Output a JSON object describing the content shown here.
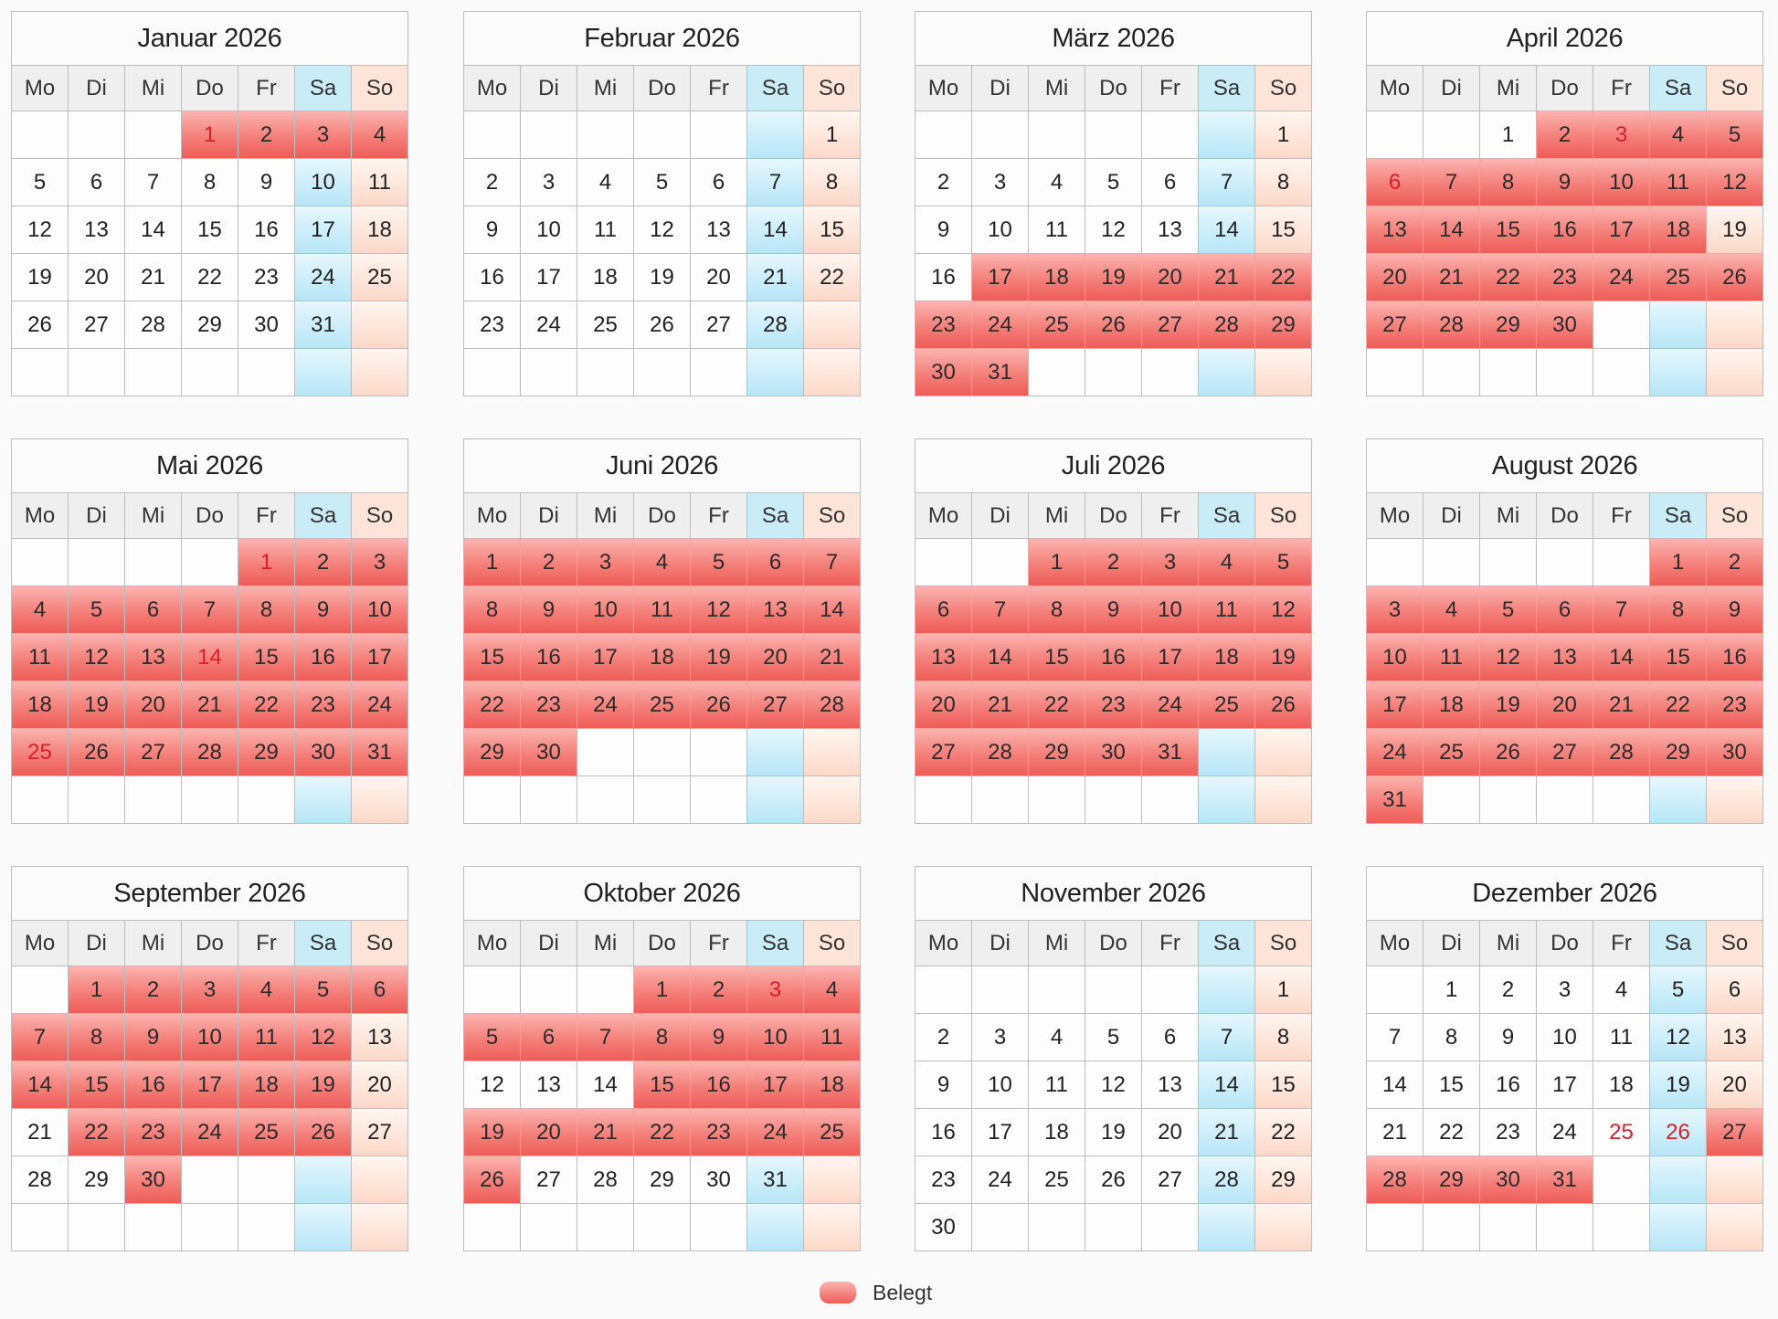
{
  "year": 2026,
  "weekday_headers": [
    "Mo",
    "Di",
    "Mi",
    "Do",
    "Fr",
    "Sa",
    "So"
  ],
  "months": [
    {
      "title": "Januar 2026",
      "first_weekday": 4,
      "days": 31,
      "booked": [
        1,
        2,
        3,
        4
      ],
      "holidays": [
        1
      ]
    },
    {
      "title": "Februar 2026",
      "first_weekday": 7,
      "days": 28,
      "booked": [],
      "holidays": []
    },
    {
      "title": "März 2026",
      "first_weekday": 7,
      "days": 31,
      "booked": [
        17,
        18,
        19,
        20,
        21,
        22,
        23,
        24,
        25,
        26,
        27,
        28,
        29,
        30,
        31
      ],
      "holidays": []
    },
    {
      "title": "April 2026",
      "first_weekday": 3,
      "days": 30,
      "booked": [
        2,
        3,
        4,
        5,
        6,
        7,
        8,
        9,
        10,
        11,
        12,
        13,
        14,
        15,
        16,
        17,
        18,
        20,
        21,
        22,
        23,
        24,
        25,
        26,
        27,
        28,
        29,
        30
      ],
      "holidays": [
        3,
        6
      ]
    },
    {
      "title": "Mai 2026",
      "first_weekday": 5,
      "days": 31,
      "booked": [
        1,
        2,
        3,
        4,
        5,
        6,
        7,
        8,
        9,
        10,
        11,
        12,
        13,
        14,
        15,
        16,
        17,
        18,
        19,
        20,
        21,
        22,
        23,
        24,
        25,
        26,
        27,
        28,
        29,
        30,
        31
      ],
      "holidays": [
        1,
        14,
        25
      ]
    },
    {
      "title": "Juni 2026",
      "first_weekday": 1,
      "days": 30,
      "booked": [
        1,
        2,
        3,
        4,
        5,
        6,
        7,
        8,
        9,
        10,
        11,
        12,
        13,
        14,
        15,
        16,
        17,
        18,
        19,
        20,
        21,
        22,
        23,
        24,
        25,
        26,
        27,
        28,
        29,
        30
      ],
      "holidays": []
    },
    {
      "title": "Juli 2026",
      "first_weekday": 3,
      "days": 31,
      "booked": [
        1,
        2,
        3,
        4,
        5,
        6,
        7,
        8,
        9,
        10,
        11,
        12,
        13,
        14,
        15,
        16,
        17,
        18,
        19,
        20,
        21,
        22,
        23,
        24,
        25,
        26,
        27,
        28,
        29,
        30,
        31
      ],
      "holidays": []
    },
    {
      "title": "August 2026",
      "first_weekday": 6,
      "days": 31,
      "booked": [
        1,
        2,
        3,
        4,
        5,
        6,
        7,
        8,
        9,
        10,
        11,
        12,
        13,
        14,
        15,
        16,
        17,
        18,
        19,
        20,
        21,
        22,
        23,
        24,
        25,
        26,
        27,
        28,
        29,
        30,
        31
      ],
      "holidays": []
    },
    {
      "title": "September 2026",
      "first_weekday": 2,
      "days": 30,
      "booked": [
        1,
        2,
        3,
        4,
        5,
        6,
        7,
        8,
        9,
        10,
        11,
        12,
        14,
        15,
        16,
        17,
        18,
        19,
        22,
        23,
        24,
        25,
        26,
        30
      ],
      "holidays": []
    },
    {
      "title": "Oktober 2026",
      "first_weekday": 4,
      "days": 31,
      "booked": [
        1,
        2,
        3,
        4,
        5,
        6,
        7,
        8,
        9,
        10,
        11,
        15,
        16,
        17,
        18,
        19,
        20,
        21,
        22,
        23,
        24,
        25,
        26
      ],
      "holidays": [
        3
      ]
    },
    {
      "title": "November 2026",
      "first_weekday": 7,
      "days": 30,
      "booked": [],
      "holidays": []
    },
    {
      "title": "Dezember 2026",
      "first_weekday": 2,
      "days": 31,
      "booked": [
        27,
        28,
        29,
        30,
        31
      ],
      "holidays": [
        25,
        26
      ]
    }
  ],
  "legend": {
    "label": "Belegt",
    "color": "#f47f7a"
  },
  "colors": {
    "booked": "#f47f7a",
    "saturday": "#c9ecf7",
    "sunday": "#fde4d8",
    "holiday_text": "#d6202a"
  }
}
